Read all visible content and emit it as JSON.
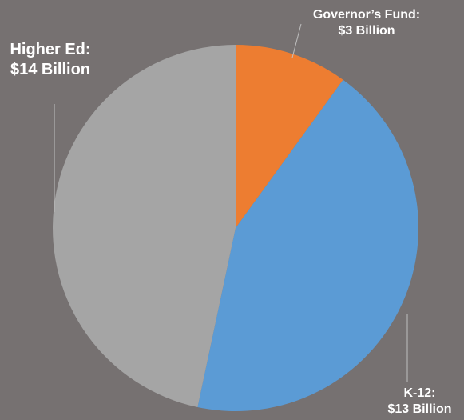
{
  "chart_data": {
    "type": "pie",
    "title": "",
    "slices": [
      {
        "name": "Governor’s Fund",
        "value": 3,
        "value_label": "$3 Billion",
        "color": "#ED7D31"
      },
      {
        "name": "K-12",
        "value": 13,
        "value_label": "$13 Billion",
        "color": "#5B9BD5"
      },
      {
        "name": "Higher Ed",
        "value": 14,
        "value_label": "$14 Billion",
        "color": "#A5A5A5"
      }
    ],
    "start_angle": "12 o'clock, clockwise",
    "legend": "none"
  },
  "background": "#767171"
}
